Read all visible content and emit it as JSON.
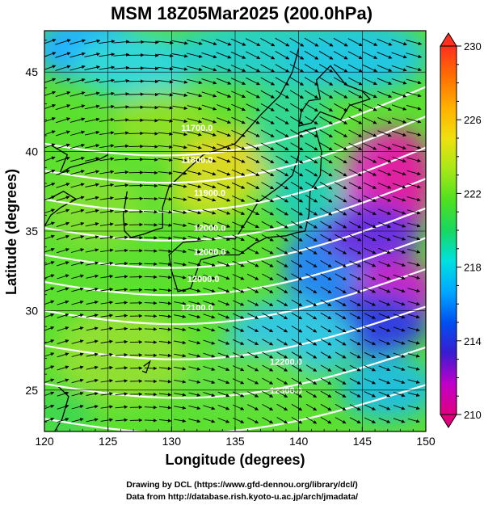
{
  "title": "MSM 18Z05Mar2025 (200.0hPa)",
  "xlabel": "Longitude (degrees)",
  "ylabel": "Latitude  (degrees)",
  "credit_line1": "Drawing by DCL (https://www.gfd-dennou.org/library/dcl/)",
  "credit_line2": "Data from http://database.rish.kyoto-u.ac.jp/arch/jmadata/",
  "chart_data": {
    "type": "heatmap",
    "title": "MSM 18Z05Mar2025 (200.0hPa)",
    "xlabel": "Longitude (degrees)",
    "ylabel": "Latitude  (degrees)",
    "xlim": [
      120,
      150
    ],
    "ylim": [
      22.4,
      47.6
    ],
    "x_ticks": [
      120,
      125,
      130,
      135,
      140,
      145,
      150
    ],
    "y_ticks": [
      25,
      30,
      35,
      40,
      45
    ],
    "colorbar": {
      "ticks": [
        210,
        214,
        218,
        222,
        226,
        230
      ],
      "range": [
        210,
        230
      ],
      "colors": [
        "#e0007e",
        "#c000c8",
        "#3a1cd0",
        "#0050f0",
        "#00a8ff",
        "#00e0e0",
        "#18d860",
        "#50e020",
        "#a8e818",
        "#f0e010",
        "#ffb000",
        "#ff7000",
        "#ff3020"
      ]
    },
    "contour_labels": [
      {
        "text": "11700.0",
        "lon": 132.0,
        "lat": 41.3
      },
      {
        "text": "11800.0",
        "lon": 132.0,
        "lat": 39.3
      },
      {
        "text": "11900.0",
        "lon": 133.0,
        "lat": 37.2
      },
      {
        "text": "12000.0",
        "lon": 133.0,
        "lat": 35.0
      },
      {
        "text": "12000.0",
        "lon": 133.0,
        "lat": 33.5
      },
      {
        "text": "12000.0",
        "lon": 132.5,
        "lat": 31.8
      },
      {
        "text": "12100.0",
        "lon": 132.0,
        "lat": 30.0
      },
      {
        "text": "12200.0",
        "lon": 139.0,
        "lat": 26.6
      },
      {
        "text": "12300.0",
        "lon": 139.0,
        "lat": 24.8
      }
    ],
    "wind_direction": "westerly",
    "grid": true
  }
}
